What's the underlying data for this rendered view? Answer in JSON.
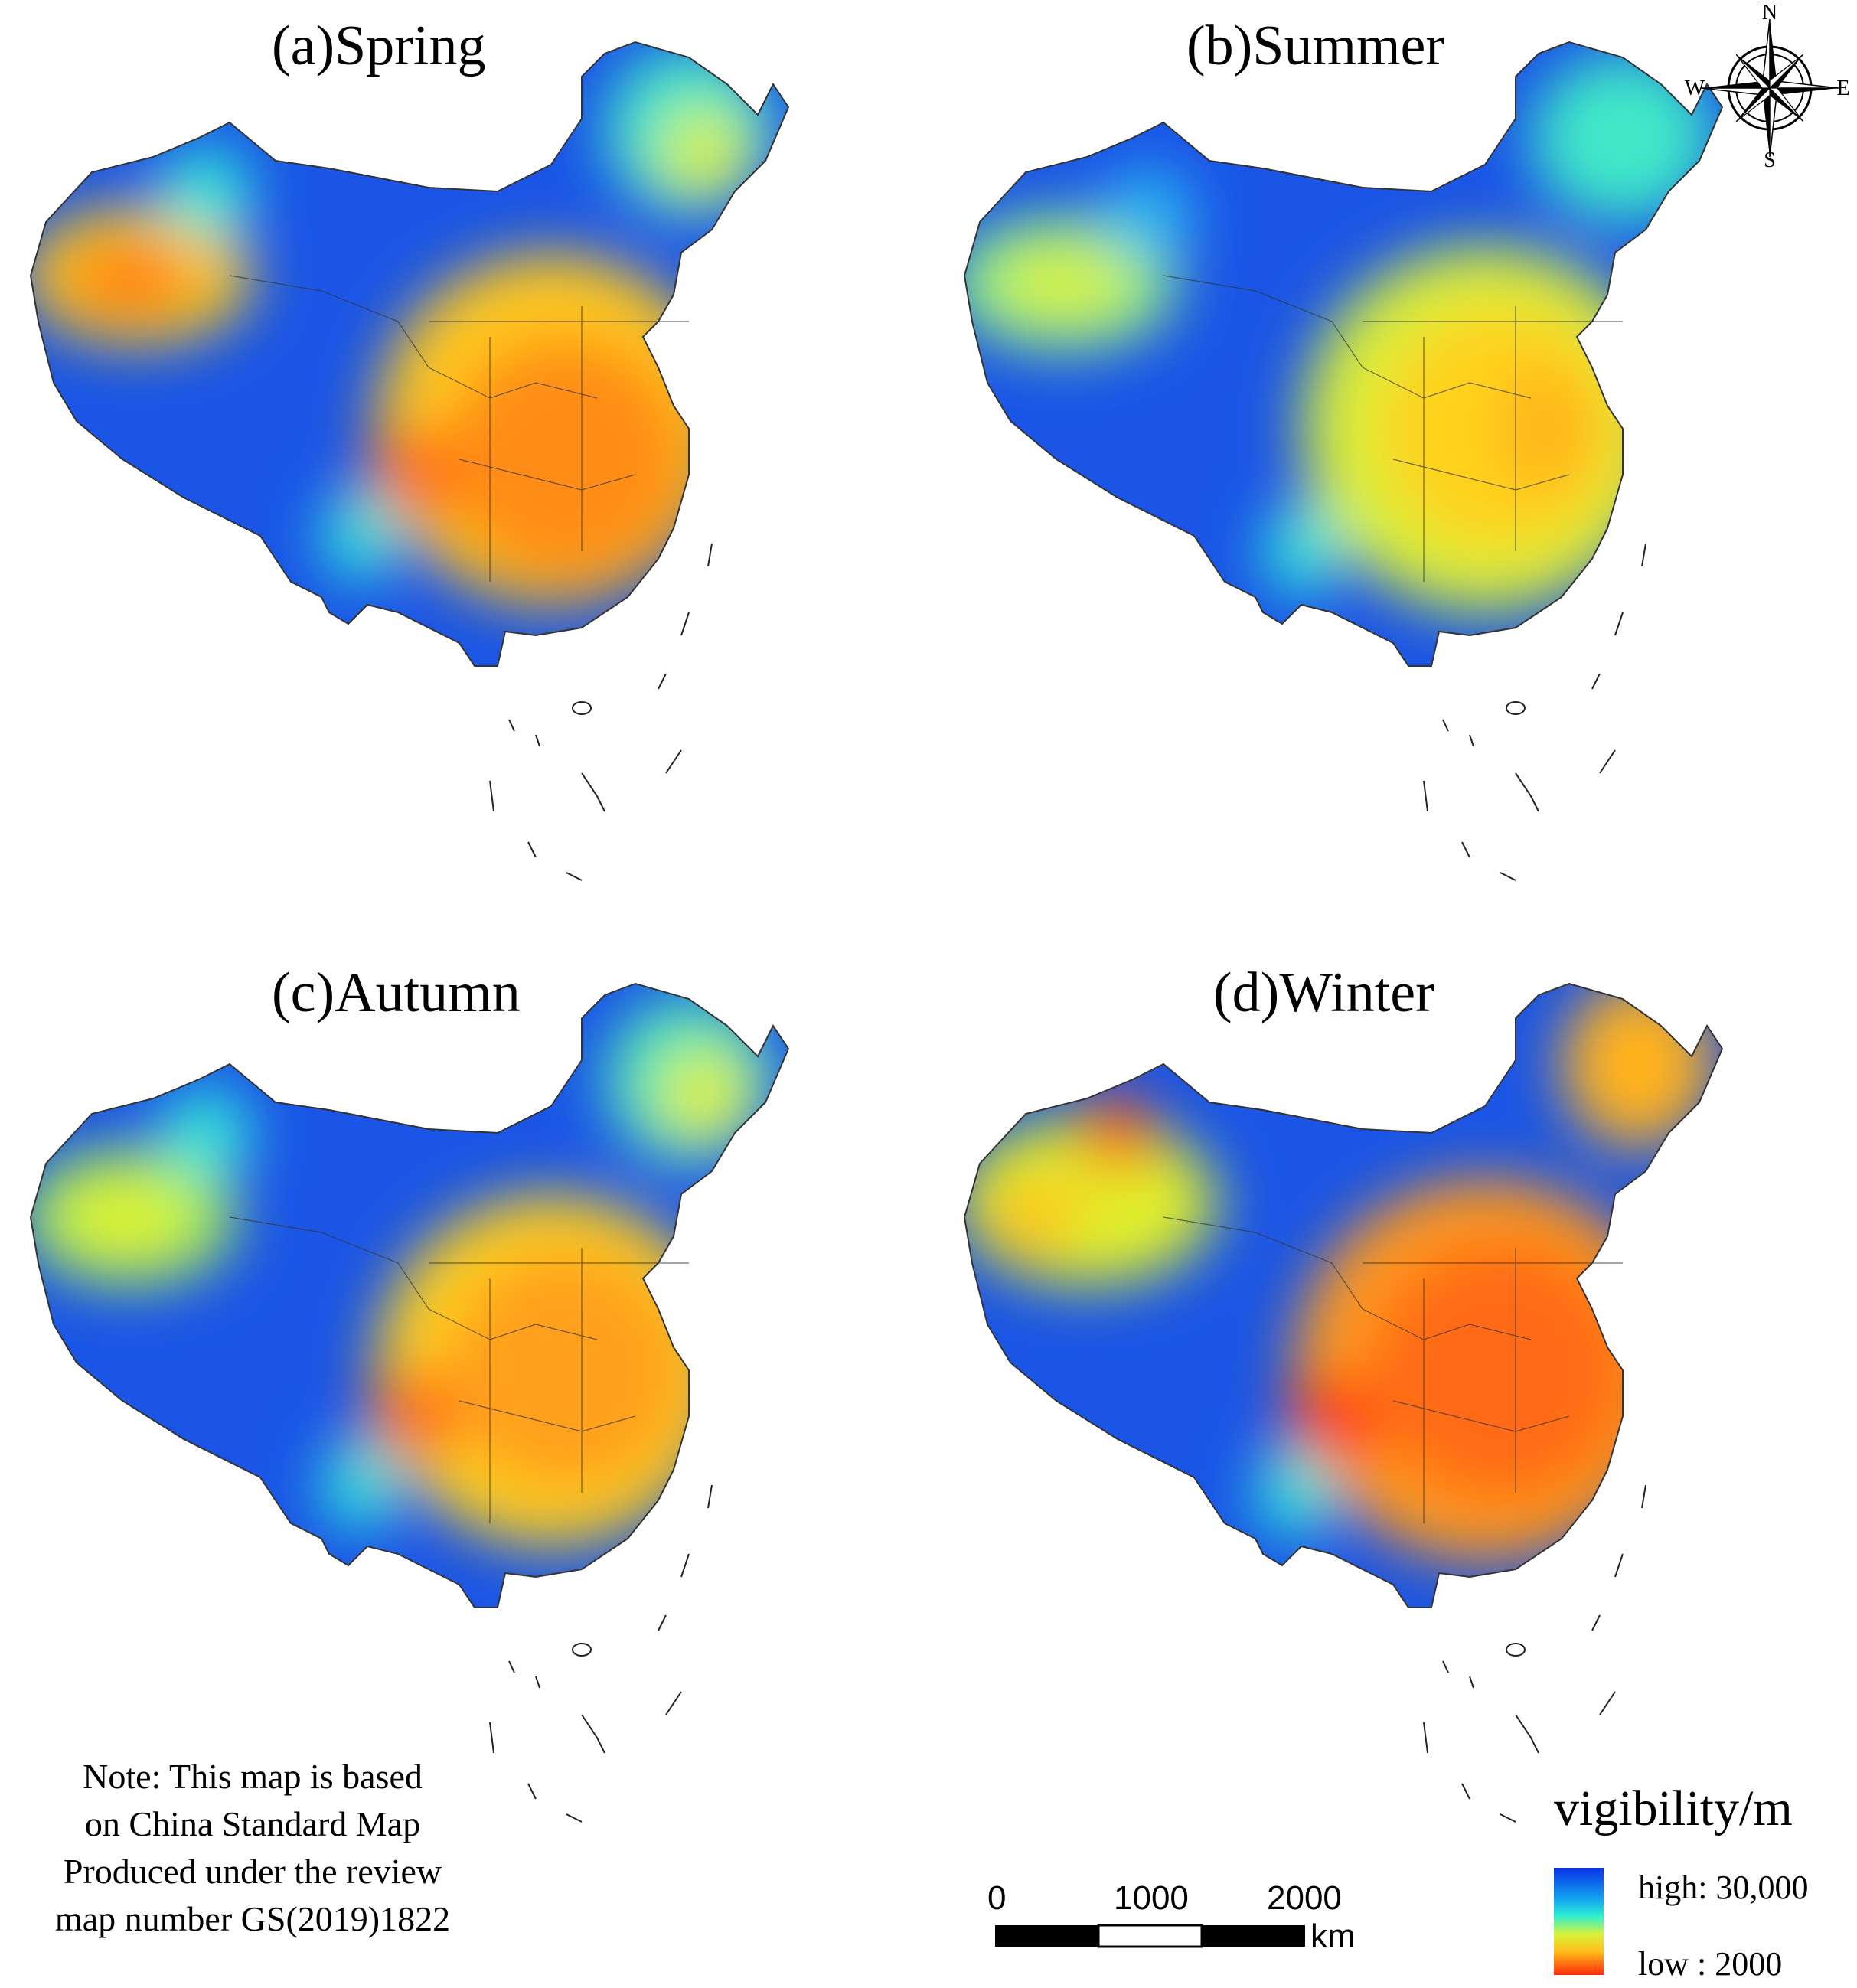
{
  "panels": [
    {
      "title": "(a)Spring"
    },
    {
      "title": "(b)Summer"
    },
    {
      "title": "(c)Autumn"
    },
    {
      "title": "(d)Winter"
    }
  ],
  "compass": {
    "north": "N",
    "south": "S",
    "east": "E",
    "west": "W",
    "icon": "compass-rose-icon"
  },
  "note": {
    "lines": [
      "Note: This map is based",
      "on China Standard Map",
      "Produced under the review",
      "map number GS(2019)1822"
    ]
  },
  "scalebar": {
    "ticks": [
      "0",
      "1000",
      "2000"
    ],
    "unit": "km"
  },
  "legend": {
    "title": "vigibility/m",
    "high_label": "high: 30,000",
    "low_label": "low : 2000",
    "colors": {
      "high": "#0a30e8",
      "mid": "#2ef0d0",
      "low": "#ff2a0a"
    }
  }
}
